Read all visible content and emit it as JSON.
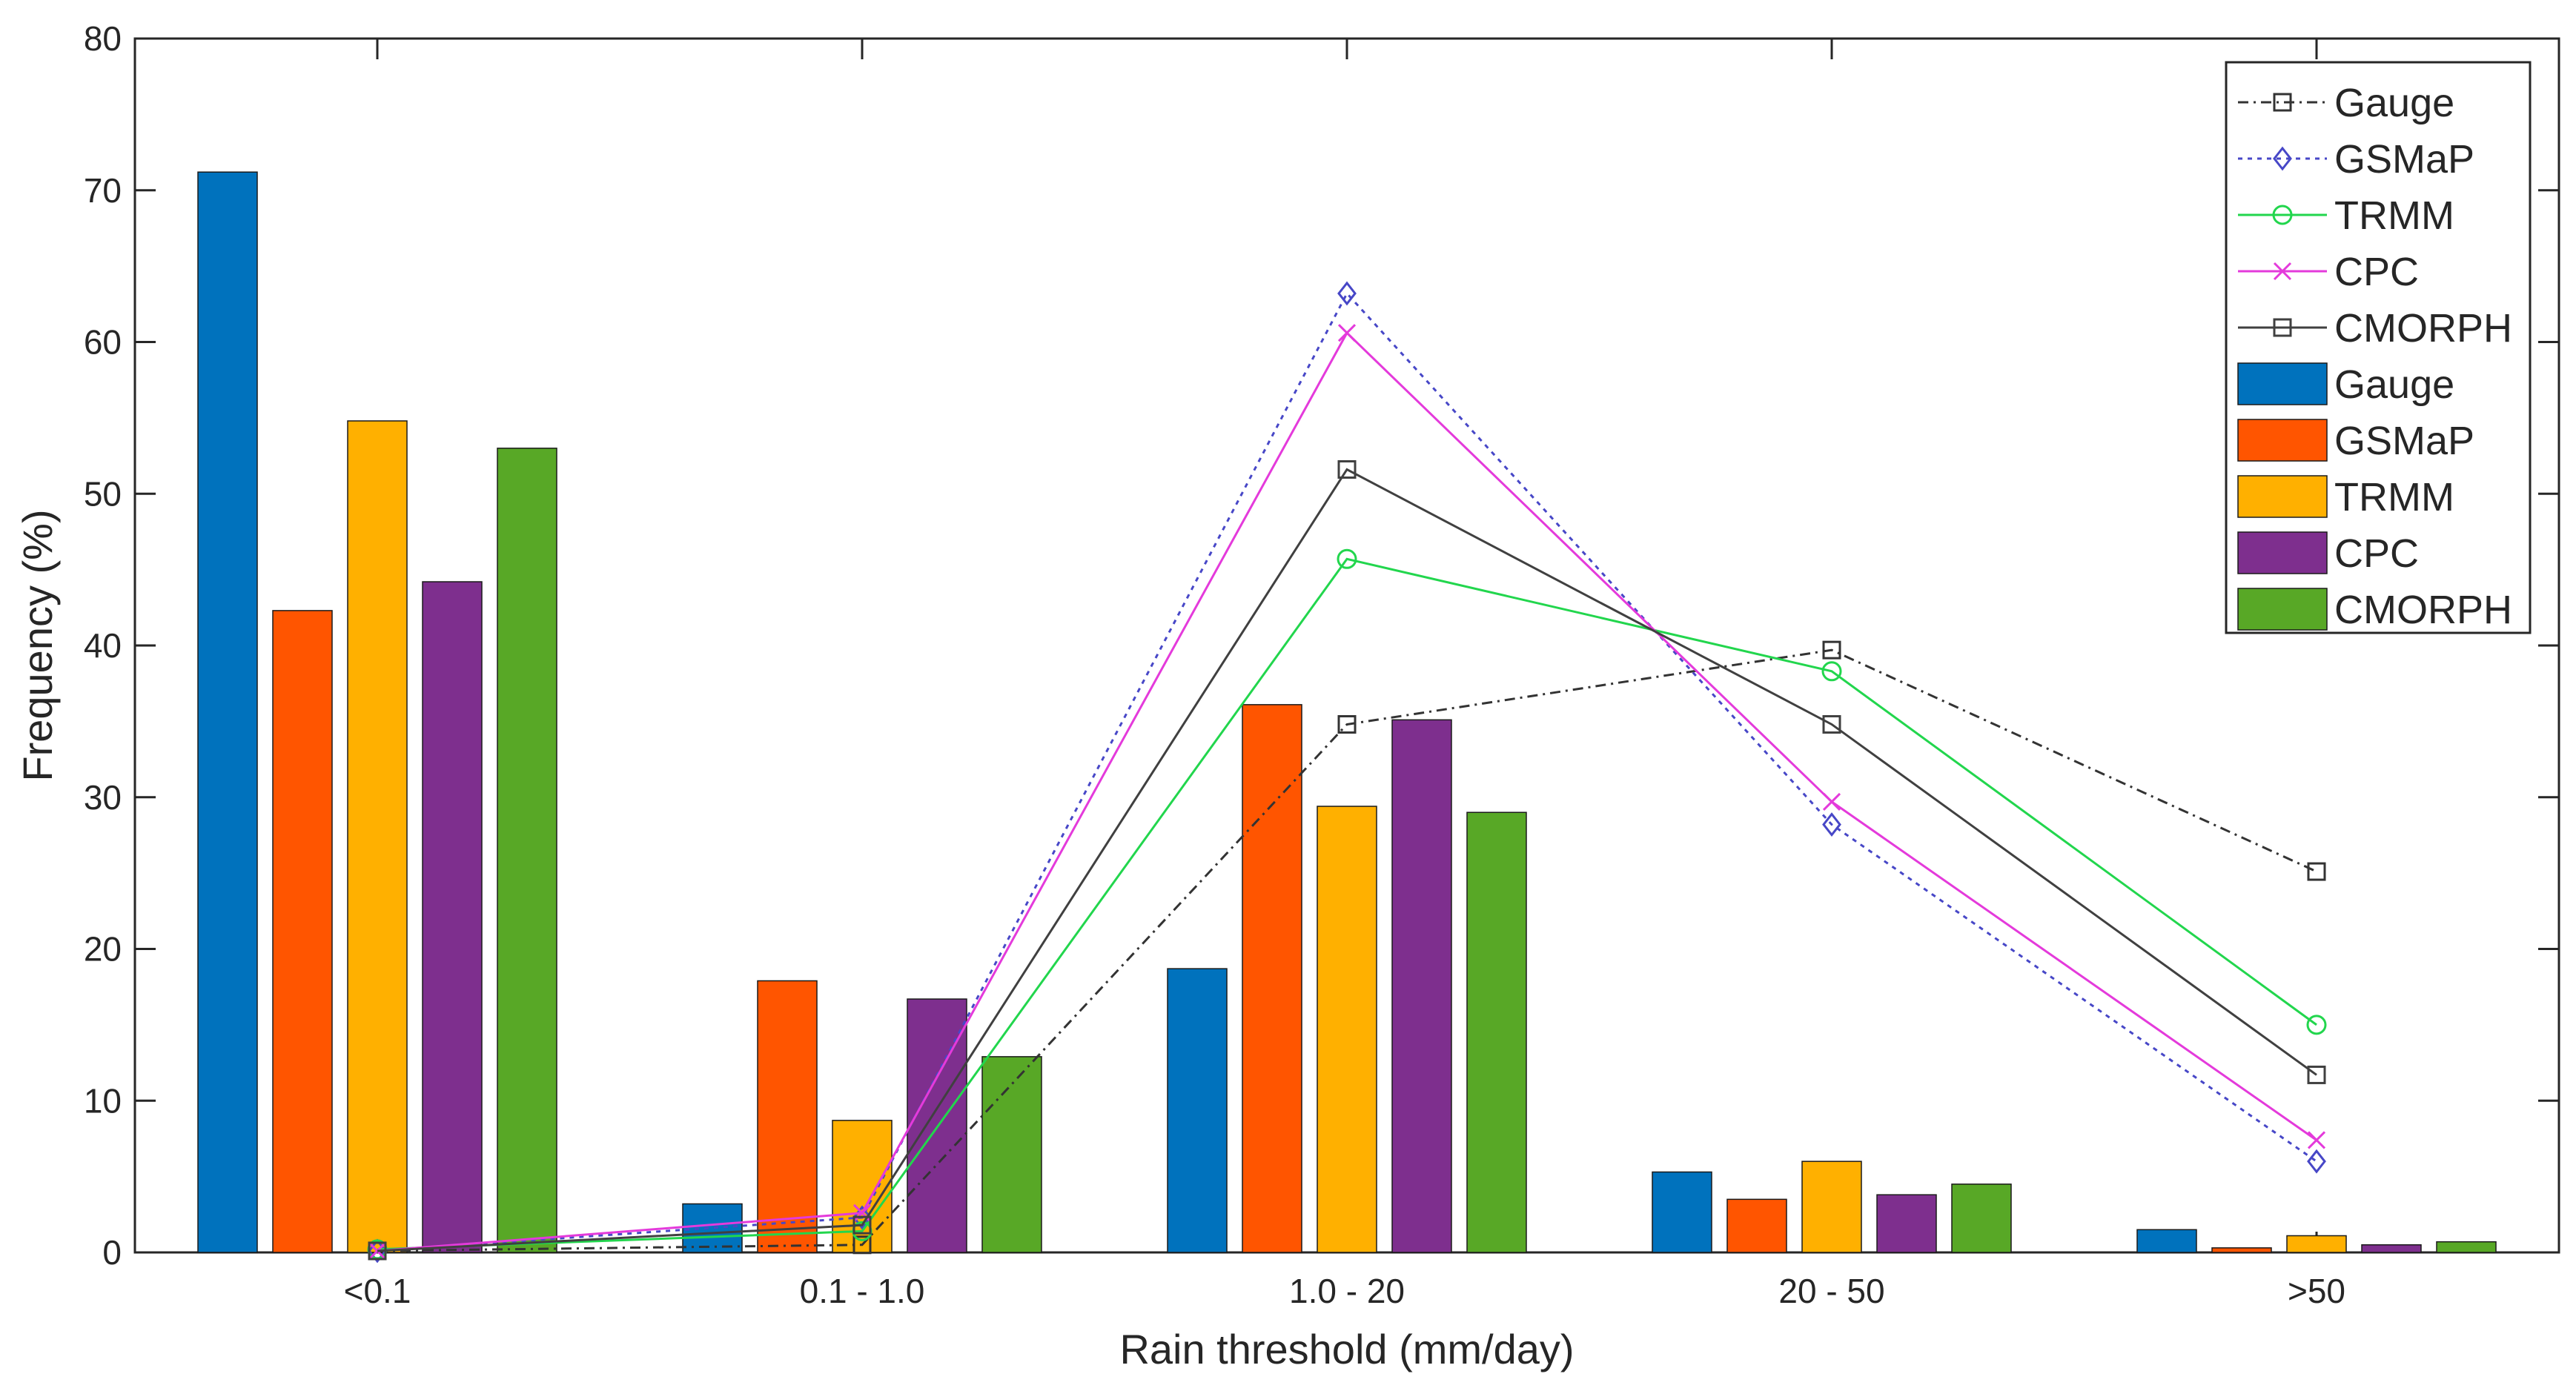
{
  "chart_data": {
    "type": "bar+line",
    "title": "",
    "xlabel": "Rain threshold (mm/day)",
    "ylabel": "Frequency (%)",
    "categories": [
      "<0.1",
      "0.1 - 1.0",
      "1.0 - 20",
      "20 - 50",
      ">50"
    ],
    "ylim": [
      0,
      80
    ],
    "yticks": [
      0,
      10,
      20,
      30,
      40,
      50,
      60,
      70,
      80
    ],
    "grid": false,
    "legend_position": "top-right",
    "bar_series": [
      {
        "name": "Gauge",
        "color": "#0072BD",
        "values": [
          71.2,
          3.2,
          18.7,
          5.3,
          1.5
        ]
      },
      {
        "name": "GSMaP",
        "color": "#FF5500",
        "values": [
          42.3,
          17.9,
          36.1,
          3.5,
          0.3
        ]
      },
      {
        "name": "TRMM",
        "color": "#FFB000",
        "values": [
          54.8,
          8.7,
          29.4,
          6.0,
          1.1
        ]
      },
      {
        "name": "CPC",
        "color": "#7E2F8E",
        "values": [
          44.2,
          16.7,
          35.1,
          3.8,
          0.5
        ]
      },
      {
        "name": "CMORPH",
        "color": "#58A826",
        "values": [
          53.0,
          12.9,
          29.0,
          4.5,
          0.7
        ]
      }
    ],
    "line_series": [
      {
        "name": "Gauge",
        "color": "#333333",
        "dash": "dashdot",
        "marker": "square",
        "values": [
          0.1,
          0.5,
          34.8,
          39.7,
          25.1
        ]
      },
      {
        "name": "GSMaP",
        "color": "#4747C7",
        "dash": "dotted",
        "marker": "diamond",
        "values": [
          0.1,
          2.3,
          63.2,
          28.2,
          6.0
        ]
      },
      {
        "name": "TRMM",
        "color": "#22D64D",
        "dash": "solid",
        "marker": "circle",
        "values": [
          0.2,
          1.4,
          45.7,
          38.3,
          15.0
        ]
      },
      {
        "name": "CPC",
        "color": "#E43ADB",
        "dash": "solid",
        "marker": "x",
        "values": [
          0.1,
          2.6,
          60.6,
          29.7,
          7.4
        ]
      },
      {
        "name": "CMORPH",
        "color": "#404040",
        "dash": "solid",
        "marker": "square",
        "values": [
          0.1,
          1.8,
          51.6,
          34.8,
          11.7
        ]
      }
    ]
  }
}
